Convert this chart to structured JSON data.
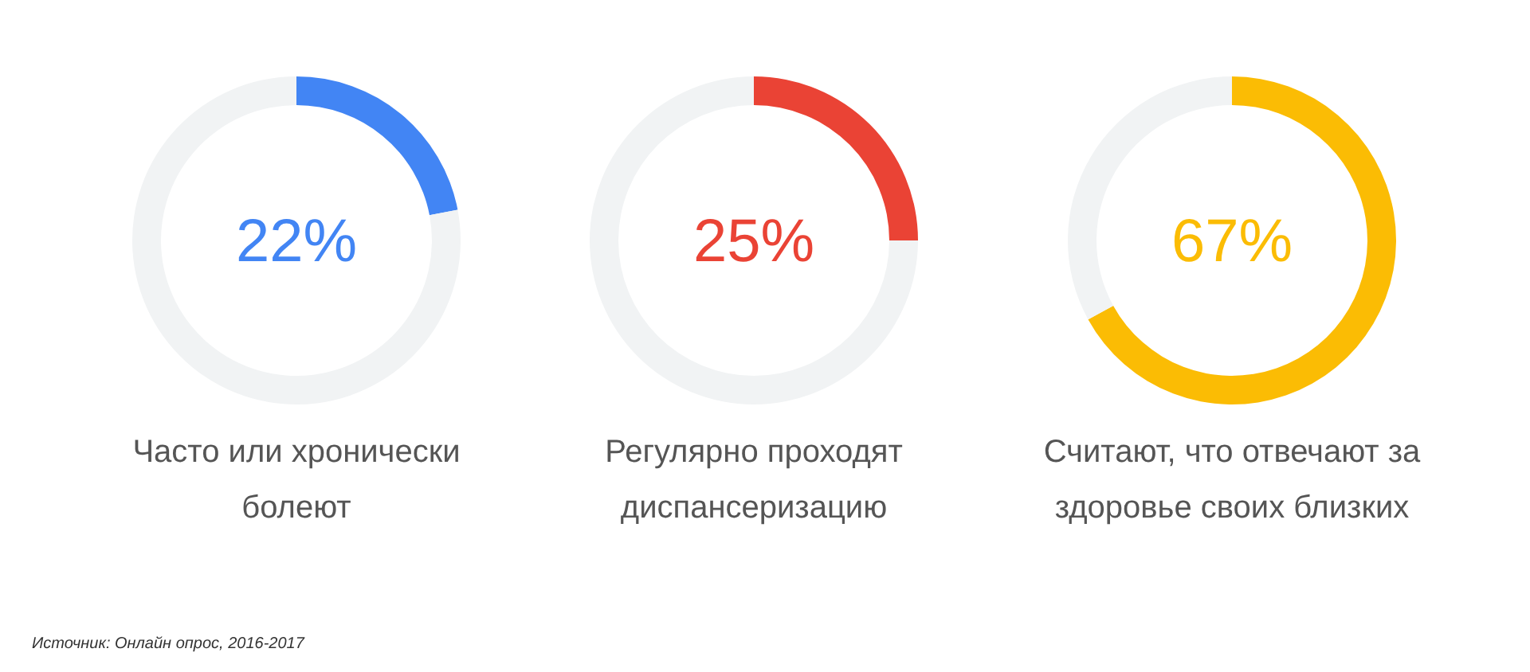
{
  "chart_data": [
    {
      "type": "donut",
      "title": "Часто или хронически болеют",
      "subtitle": "22%",
      "categories": [
        null,
        null
      ],
      "values": [
        22,
        78
      ],
      "colors": [
        "#4285f4",
        "#f1f3f4"
      ],
      "annotations": [
        "Источник: Онлайн опрос, 2016-2017"
      ]
    },
    {
      "type": "donut",
      "title": "Регулярно проходят диспансеризацию",
      "subtitle": "25%",
      "categories": [
        null,
        null
      ],
      "values": [
        25,
        75
      ],
      "colors": [
        "#ea4335",
        "#f1f3f4"
      ]
    },
    {
      "type": "donut",
      "title": "Считают, что отвечают за здоровье своих близких",
      "subtitle": "67%",
      "categories": [
        null,
        null
      ],
      "values": [
        67,
        33
      ],
      "colors": [
        "#fbbc04",
        "#f1f3f4"
      ]
    }
  ]
}
